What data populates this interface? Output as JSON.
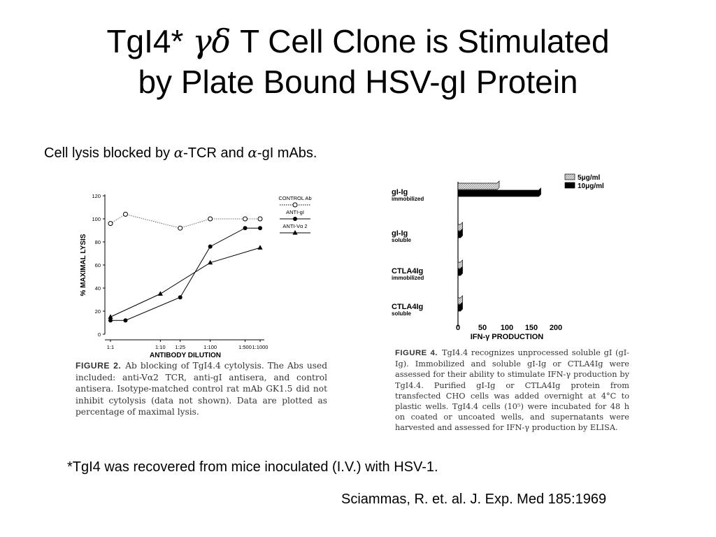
{
  "slide": {
    "title_line1_a": "TgI4* ",
    "title_greek": "γδ",
    "title_line1_b": " T Cell Clone is Stimulated",
    "title_line2": "by Plate Bound HSV-gI Protein",
    "subtitle_a": "Cell lysis blocked by ",
    "subtitle_alpha1": "α",
    "subtitle_b": "-TCR and ",
    "subtitle_alpha2": "α",
    "subtitle_c": "-gI mAbs.",
    "footnote": "*TgI4 was recovered from mice inoculated (I.V.) with HSV-1.",
    "citation": "Sciammas, R. et. al. J. Exp. Med  185:1969"
  },
  "captions": {
    "left_label": "FIGURE 2.",
    "left_text": "Ab blocking of TgI4.4 cytolysis. The Abs used included: anti-Vα2 TCR, anti-gI antisera, and control antisera. Isotype-matched control rat mAb GK1.5 did not inhibit cytolysis (data not shown). Data are plotted as percentage of maximal lysis.",
    "right_label": "FIGURE 4.",
    "right_text": "TgI4.4 recognizes unprocessed soluble gI (gI-Ig). Immobilized and soluble gI-Ig or CTLA4Ig were assessed for their ability to stimulate IFN-γ production by TgI4.4. Purified gI-Ig or CTLA4Ig protein from transfected CHO cells was added overnight at 4°C to plastic wells. TgI4.4 cells (10⁵) were incubated for 48 h on coated or uncoated wells, and supernatants were harvested and assessed for IFN-γ production by ELISA."
  },
  "chart_data": [
    {
      "type": "line",
      "xlabel": "ANTIBODY DILUTION",
      "ylabel": "% MAXIMAL LYSIS",
      "ylim": [
        0,
        120
      ],
      "yticks": [
        0,
        20,
        40,
        60,
        80,
        100,
        120
      ],
      "x_tick_labels": [
        "1:1",
        "1:10",
        "1:25",
        "1:100",
        "1:500",
        "1:1000"
      ],
      "x_tick_positions": [
        1,
        10,
        25,
        100,
        500,
        1000
      ],
      "legend_position": "top-right",
      "series": [
        {
          "name": "CONTROL Ab",
          "marker": "open-circle",
          "style": "dotted",
          "x": [
            1,
            2,
            25,
            100,
            500,
            1000
          ],
          "y": [
            96,
            104,
            92,
            100,
            100,
            100
          ]
        },
        {
          "name": "ANTI-gI",
          "marker": "filled-circle",
          "style": "solid",
          "x": [
            1,
            2,
            25,
            100,
            500,
            1000
          ],
          "y": [
            12,
            12,
            32,
            76,
            92,
            92
          ]
        },
        {
          "name": "ANTI-Vα 2",
          "marker": "filled-triangle",
          "style": "solid",
          "x": [
            1,
            10,
            100,
            1000
          ],
          "y": [
            15,
            35,
            62,
            75
          ]
        }
      ]
    },
    {
      "type": "bar",
      "orientation": "horizontal",
      "xlabel": "IFN-γ  PRODUCTION",
      "xlim": [
        0,
        200
      ],
      "xticks": [
        0,
        50,
        100,
        150,
        200
      ],
      "legend_position": "top-right",
      "categories": [
        {
          "main": "gI-Ig",
          "sub": "immobilized"
        },
        {
          "main": "gI-Ig",
          "sub": "soluble"
        },
        {
          "main": "CTLA4Ig",
          "sub": "immobilized"
        },
        {
          "main": "CTLA4Ig",
          "sub": "soluble"
        }
      ],
      "series": [
        {
          "name": "5μg/ml",
          "fill": "hatched-gray",
          "values": [
            80,
            5,
            5,
            5
          ]
        },
        {
          "name": "10μg/ml",
          "fill": "#000000",
          "values": [
            165,
            5,
            5,
            5
          ]
        }
      ]
    }
  ]
}
